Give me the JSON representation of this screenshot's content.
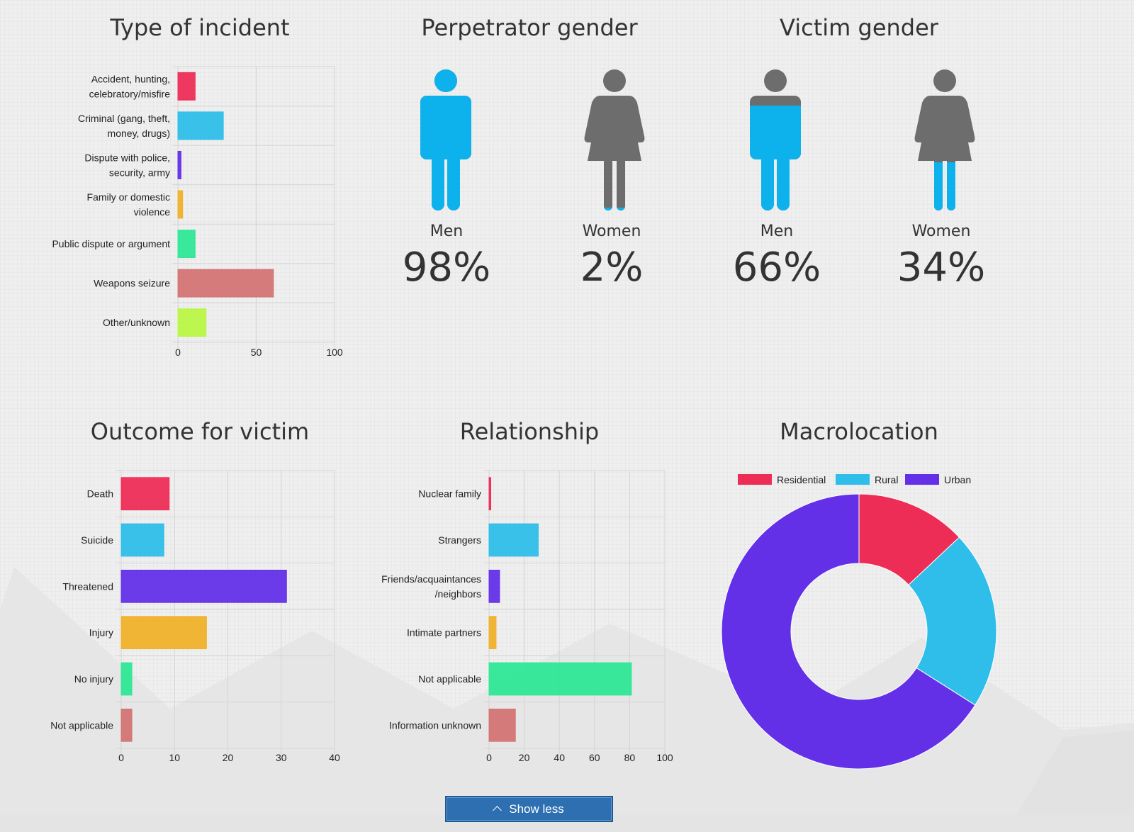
{
  "titles": {
    "incident": "Type of incident",
    "perpetrator": "Perpetrator gender",
    "victim": "Victim gender",
    "outcome": "Outcome for victim",
    "relationship": "Relationship",
    "macro": "Macrolocation"
  },
  "perpetrator": {
    "men_label": "Men",
    "men_pct": "98%",
    "men_value": 0.98,
    "women_label": "Women",
    "women_pct": "2%",
    "women_value": 0.02
  },
  "victim": {
    "men_label": "Men",
    "men_pct": "66%",
    "men_value": 0.66,
    "women_label": "Women",
    "women_pct": "34%",
    "women_value": 0.34
  },
  "colors": {
    "male_fill": "#0db2ec",
    "gray": "#6d6d6d",
    "button": "#2d6fb0"
  },
  "button": {
    "label": "Show less",
    "icon": "chevron-up-icon"
  },
  "chart_data": [
    {
      "type": "bar",
      "orientation": "horizontal",
      "id": "incident",
      "categories": [
        [
          "Accident, hunting,",
          "celebratory/misfire"
        ],
        [
          "Criminal (gang, theft,",
          "money, drugs)"
        ],
        [
          "Dispute with police,",
          "security, army"
        ],
        [
          "Family or domestic",
          "violence"
        ],
        [
          "Public dispute or argument"
        ],
        [
          "Weapons seizure"
        ],
        [
          "Other/unknown"
        ]
      ],
      "values": [
        11,
        29,
        2,
        3,
        11,
        61,
        18
      ],
      "colors": [
        "#ee2d57",
        "#2ebee9",
        "#6330e8",
        "#f0b12b",
        "#2fe797",
        "#d47474",
        "#b8f545"
      ],
      "xlim": [
        0,
        100
      ],
      "xticks": [
        0,
        50,
        100
      ],
      "grid": true
    },
    {
      "type": "bar",
      "orientation": "horizontal",
      "id": "outcome",
      "categories": [
        [
          "Death"
        ],
        [
          "Suicide"
        ],
        [
          "Threatened"
        ],
        [
          "Injury"
        ],
        [
          "No injury"
        ],
        [
          "Not applicable"
        ]
      ],
      "values": [
        9,
        8,
        31,
        16,
        2,
        2
      ],
      "colors": [
        "#ee2d57",
        "#2ebee9",
        "#6330e8",
        "#f0b12b",
        "#2fe797",
        "#d47474"
      ],
      "xlim": [
        0,
        40
      ],
      "xticks": [
        0,
        10,
        20,
        30,
        40
      ],
      "grid": true
    },
    {
      "type": "bar",
      "orientation": "horizontal",
      "id": "relationship",
      "categories": [
        [
          "Nuclear family"
        ],
        [
          "Strangers"
        ],
        [
          "Friends/acquaintances",
          "/neighbors"
        ],
        [
          "Intimate partners"
        ],
        [
          "Not applicable"
        ],
        [
          "Information unknown"
        ]
      ],
      "values": [
        1,
        28,
        6,
        4,
        81,
        15
      ],
      "colors": [
        "#ee2d57",
        "#2ebee9",
        "#6330e8",
        "#f0b12b",
        "#2fe797",
        "#d47474"
      ],
      "xlim": [
        0,
        100
      ],
      "xticks": [
        0,
        20,
        40,
        60,
        80,
        100
      ],
      "grid": true
    },
    {
      "type": "pie",
      "id": "macro",
      "donut": true,
      "labels": [
        "Residential",
        "Rural",
        "Urban"
      ],
      "values": [
        13,
        21,
        66
      ],
      "colors": [
        "#ee2d57",
        "#2ebee9",
        "#6330e8"
      ],
      "legend": "top"
    }
  ]
}
